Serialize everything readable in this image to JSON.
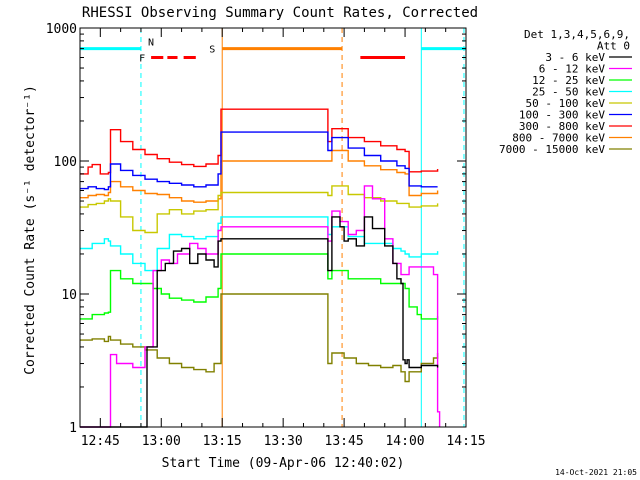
{
  "chart_data": {
    "type": "line",
    "title": "RHESSI Observing Summary Count Rates, Corrected",
    "xlabel": "Start Time (09-Apr-06 12:40:02)",
    "ylabel": "Corrected Count Rate (s⁻¹ detector⁻¹)",
    "yscale": "log",
    "xlim": [
      0,
      95
    ],
    "ylim": [
      1,
      1000
    ],
    "x_units": "minutes after 12:40:02",
    "x_ticks": [
      {
        "x": 5,
        "label": "12:45"
      },
      {
        "x": 20,
        "label": "13:00"
      },
      {
        "x": 35,
        "label": "13:15"
      },
      {
        "x": 50,
        "label": "13:30"
      },
      {
        "x": 65,
        "label": "13:45"
      },
      {
        "x": 80,
        "label": "14:00"
      },
      {
        "x": 95,
        "label": "14:15"
      }
    ],
    "y_ticks": [
      {
        "y": 1,
        "label": "1"
      },
      {
        "y": 10,
        "label": "10"
      },
      {
        "y": 100,
        "label": "100"
      },
      {
        "y": 1000,
        "label": "1000"
      }
    ],
    "legend_header": [
      "Det 1,3,4,5,6,9,",
      "Att 0"
    ],
    "legend_position": "right",
    "timestamp": "14-Oct-2021 21:05",
    "series": [
      {
        "name": "3 - 6 keV",
        "color": "#000000",
        "x": [
          0,
          16,
          16.5,
          19,
          21,
          23,
          25,
          27,
          29,
          31,
          33,
          34,
          34.7,
          61,
          62,
          64,
          65,
          66,
          68,
          70,
          72,
          75,
          77,
          78,
          79,
          79.5,
          80,
          80.5,
          81,
          84,
          88
        ],
        "y": [
          1,
          1,
          4,
          15,
          17,
          21,
          22,
          17,
          20,
          18,
          16,
          25,
          26,
          15,
          38,
          32,
          25,
          26,
          23,
          38,
          31,
          23,
          17,
          13,
          12,
          3.2,
          3.0,
          3.2,
          2.8,
          2.9,
          2.8
        ]
      },
      {
        "name": "6 - 12 keV",
        "color": "#ff00ff",
        "x": [
          0,
          7,
          7.5,
          9,
          13,
          16,
          18,
          20,
          22,
          24,
          27,
          29,
          31,
          34,
          34.7,
          61,
          62,
          64,
          66,
          68,
          70,
          72,
          75,
          77,
          79,
          80,
          81,
          84,
          86,
          87,
          88,
          88.5
        ],
        "y": [
          1,
          1,
          3.5,
          3.0,
          2.8,
          4.0,
          15,
          18,
          17,
          20,
          24,
          22,
          20,
          30,
          32,
          25,
          42,
          35,
          28,
          30,
          65,
          52,
          26,
          17,
          14,
          14,
          16,
          16,
          16,
          14,
          1.3,
          1.0
        ]
      },
      {
        "name": "12 - 25 keV",
        "color": "#00ff00",
        "x": [
          0,
          3,
          6,
          7,
          7.5,
          10,
          13,
          16,
          18,
          20,
          22,
          25,
          28,
          31,
          34,
          34.7,
          61,
          62,
          66,
          70,
          74,
          77,
          79,
          80,
          81,
          83,
          84,
          86,
          88
        ],
        "y": [
          6.5,
          7,
          7.2,
          7.3,
          15,
          13,
          12,
          12,
          11,
          10,
          9.3,
          9.0,
          8.7,
          9.5,
          11,
          20,
          13,
          15,
          13,
          13,
          12,
          12,
          12,
          11,
          8,
          7,
          6.5,
          6.5,
          6.8
        ]
      },
      {
        "name": "25 - 50 keV",
        "color": "#00ffff",
        "x": [
          0,
          3,
          6,
          7,
          7.5,
          10,
          13,
          16,
          19,
          22,
          25,
          28,
          31,
          34,
          34.7,
          61,
          62,
          66,
          70,
          74,
          77,
          79,
          80,
          81,
          84,
          88
        ],
        "y": [
          22,
          24,
          26,
          25,
          23,
          20,
          17,
          15,
          22,
          28,
          27,
          26,
          27,
          34,
          38,
          28,
          32,
          27,
          24,
          24,
          22,
          21,
          20,
          19,
          20,
          21
        ]
      },
      {
        "name": "50 - 100 keV",
        "color": "#c8c800",
        "x": [
          0,
          2,
          4,
          6,
          7,
          7.5,
          10,
          13,
          16,
          19,
          22,
          25,
          28,
          31,
          34,
          34.7,
          61,
          62,
          66,
          70,
          74,
          78,
          80,
          81,
          84,
          88
        ],
        "y": [
          45,
          47,
          48,
          50,
          52,
          50,
          38,
          30,
          29,
          40,
          43,
          40,
          42,
          43,
          55,
          58,
          55,
          65,
          56,
          53,
          50,
          48,
          48,
          45,
          46,
          48
        ]
      },
      {
        "name": "100 - 300 keV",
        "color": "#0000ff",
        "x": [
          0,
          2,
          4,
          6,
          7,
          7.5,
          10,
          13,
          16,
          19,
          22,
          25,
          28,
          31,
          34,
          34.7,
          61,
          62,
          66,
          70,
          74,
          78,
          80,
          81,
          84,
          88
        ],
        "y": [
          62,
          64,
          62,
          61,
          64,
          95,
          85,
          78,
          73,
          70,
          68,
          66,
          64,
          66,
          80,
          165,
          120,
          150,
          125,
          110,
          100,
          92,
          88,
          65,
          64,
          64
        ]
      },
      {
        "name": "300 - 800 keV",
        "color": "#ff0000",
        "x": [
          0,
          2,
          3,
          5,
          7,
          7.5,
          10,
          13,
          16,
          19,
          22,
          25,
          28,
          31,
          34,
          34.7,
          61,
          62,
          66,
          70,
          74,
          78,
          80,
          81,
          84,
          88
        ],
        "y": [
          80,
          90,
          94,
          80,
          82,
          172,
          140,
          122,
          112,
          104,
          98,
          94,
          91,
          95,
          110,
          245,
          140,
          175,
          150,
          140,
          130,
          122,
          118,
          83,
          84,
          87
        ]
      },
      {
        "name": "800 - 7000 keV",
        "color": "#ff8000",
        "x": [
          0,
          2,
          4,
          6,
          7,
          7.5,
          10,
          13,
          16,
          19,
          22,
          25,
          28,
          31,
          34,
          34.7,
          61,
          62,
          66,
          70,
          74,
          78,
          80,
          81,
          84,
          88
        ],
        "y": [
          53,
          55,
          56,
          55,
          58,
          70,
          64,
          60,
          57,
          56,
          53,
          50,
          49,
          50,
          52,
          100,
          100,
          120,
          100,
          92,
          86,
          82,
          80,
          55,
          57,
          60
        ]
      },
      {
        "name": "7000 - 15000 keV",
        "color": "#808000",
        "x": [
          0,
          3,
          6,
          7,
          7.5,
          10,
          13,
          16,
          19,
          22,
          25,
          28,
          31,
          33,
          34.7,
          61,
          62,
          65,
          68,
          71,
          74,
          77,
          79,
          80,
          81,
          84,
          87,
          88
        ],
        "y": [
          4.5,
          4.6,
          4.4,
          4.8,
          4.5,
          4.2,
          4.0,
          3.8,
          3.3,
          3.0,
          2.8,
          2.7,
          2.6,
          3.0,
          10,
          3.0,
          3.6,
          3.3,
          3.0,
          2.9,
          2.8,
          2.9,
          2.6,
          2.2,
          2.6,
          3.0,
          3.3,
          3.6
        ]
      }
    ],
    "overlays": {
      "saa_bar": {
        "label": "S",
        "color": "#ff8000",
        "x": [
          35,
          64.5
        ],
        "y": 700,
        "dashed_edge_x": 64.5
      },
      "night": {
        "label": "N",
        "color": "#00ffff",
        "y": 700,
        "segments": [
          [
            0,
            15
          ],
          [
            84,
            95
          ]
        ],
        "dashed_x": [
          15,
          94.5
        ],
        "solid_x": [
          84
        ]
      },
      "flare": {
        "label": "F",
        "color": "#ff0000",
        "y": 600,
        "dashes": [
          [
            17.5,
            20.5
          ],
          [
            21.5,
            24
          ],
          [
            25.5,
            28.5
          ],
          [
            69,
            80
          ]
        ]
      }
    },
    "grid": false,
    "legend": "right"
  }
}
